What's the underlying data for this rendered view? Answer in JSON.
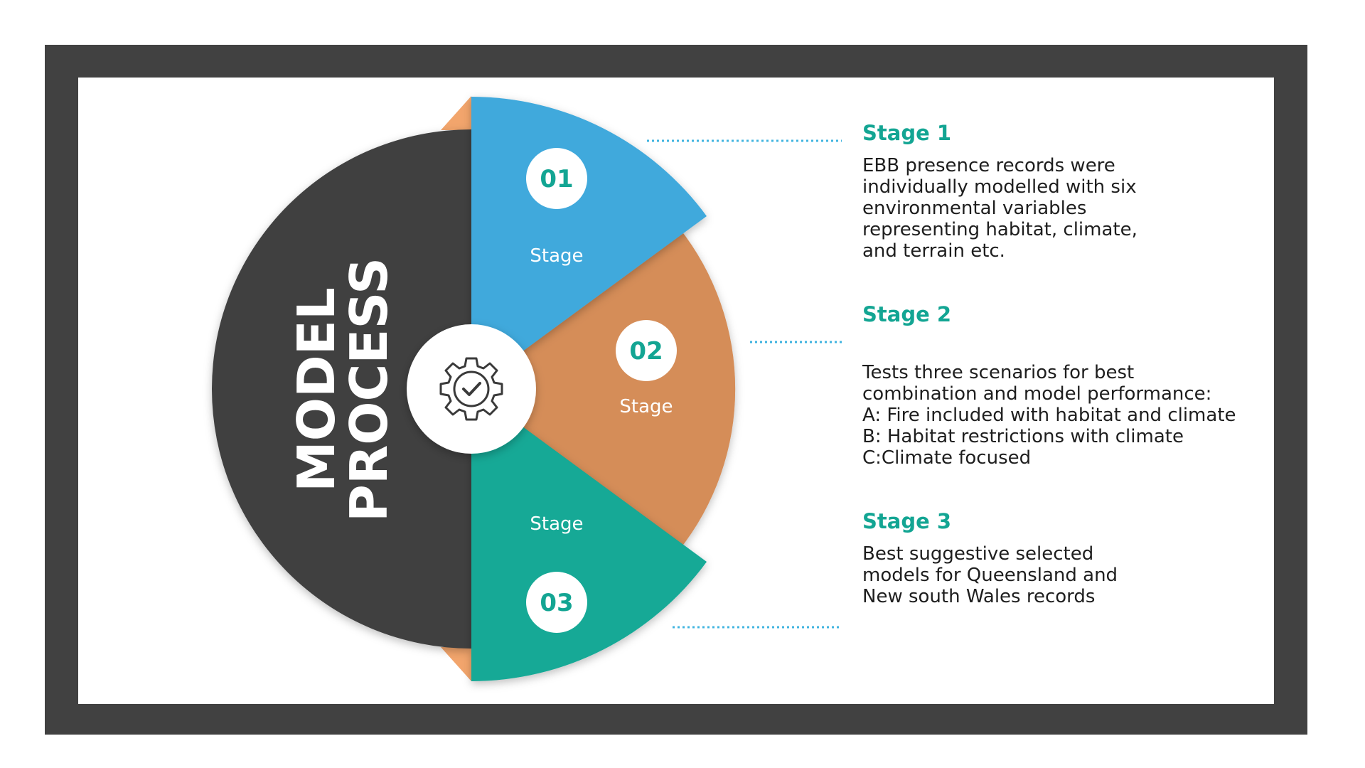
{
  "diagram": {
    "title_line1": "MODEL",
    "title_line2": "PROCESS",
    "center_icon": "gear-check-icon",
    "stages": [
      {
        "number": "01",
        "label": "Stage",
        "color": "#40a9dc"
      },
      {
        "number": "02",
        "label": "Stage",
        "color": "#d58d58"
      },
      {
        "number": "03",
        "label": "Stage",
        "color": "#12a996"
      }
    ],
    "colors": {
      "frame": "#414141",
      "half_circle": "#3f3f3f",
      "accent_orange": "#f2a56c",
      "number_text": "#13a593",
      "connector": "#40b4e0"
    }
  },
  "descriptions": [
    {
      "heading": "Stage 1",
      "body": "EBB presence records were\nindividually modelled with six\nenvironmental variables\nrepresenting habitat, climate,\nand terrain etc."
    },
    {
      "heading": "Stage 2",
      "body": "Tests three scenarios for best\ncombination and model performance:\nA: Fire included with habitat and climate\nB: Habitat restrictions with climate\nC:Climate focused"
    },
    {
      "heading": "Stage 3",
      "body": "Best suggestive selected\nmodels for Queensland and\nNew south Wales records"
    }
  ]
}
